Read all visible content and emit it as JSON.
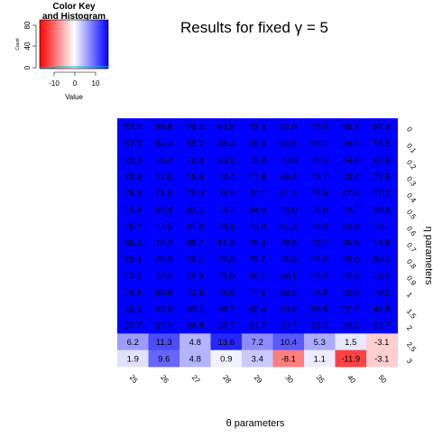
{
  "chart_data": {
    "type": "heatmap",
    "title": "Results for fixed γ = 5",
    "xlabel": "θ parameters",
    "ylabel": "η parameters",
    "x_categories": [
      "25",
      "26",
      "27",
      "28",
      "29",
      "30",
      "35",
      "40",
      "50"
    ],
    "y_categories": [
      "0",
      "0.1",
      "0.2",
      "0.3",
      "0.4",
      "0.5",
      "0.6",
      "0.7",
      "0.8",
      "0.9",
      "1",
      "1.5",
      "2",
      "2.5",
      "3"
    ],
    "values": [
      [
        87.4,
        89.8,
        70.4,
        63.5,
        73.4,
        62.0,
        72.0,
        65.2,
        67.4
      ],
      [
        87.8,
        84.3,
        58.7,
        68.3,
        65.4,
        66.5,
        69.1,
        68.3,
        55.5
      ],
      [
        70.8,
        78.4,
        72.8,
        68.1,
        73.0,
        70.0,
        78.2,
        84.0,
        67.8
      ],
      [
        70.3,
        77.8,
        75.5,
        72.4,
        77.8,
        65.8,
        76.7,
        73.2,
        77.5
      ],
      [
        76.5,
        71.0,
        79.0,
        76.9,
        70.1,
        81.3,
        75.5,
        87.0,
        77.3
      ],
      [
        75.2,
        85.8,
        82.1,
        74.7,
        84.6,
        73.0,
        79.0,
        79.7,
        80.4
      ],
      [
        76.7,
        77.5,
        87.6,
        78.1,
        73.0,
        81.3,
        78.4,
        82.8,
        73.7
      ],
      [
        80.4,
        79.2,
        89.7,
        81.9,
        79.3,
        78.5,
        73.7,
        85.0,
        73.5
      ],
      [
        83.6,
        75.9,
        76.1,
        79.8,
        75.7,
        75.8,
        79.5,
        78.0,
        89.1
      ],
      [
        73.6,
        74.9,
        75.9,
        75.0,
        86.7,
        66.1,
        79.0,
        75.0,
        72.9
      ],
      [
        74.8,
        69.8,
        71.6,
        75.8,
        77.1,
        62.3,
        79.0,
        72.9,
        70.1
      ],
      [
        42.3,
        47.0,
        39.1,
        48.7,
        50.4,
        53.9,
        56.5,
        37.7,
        40.8
      ],
      [
        27.7,
        17.3,
        24.8,
        25.7,
        21.7,
        20.7,
        21.3,
        19.1,
        21.7
      ],
      [
        6.2,
        11.3,
        4.8,
        13.6,
        7.2,
        10.4,
        5.3,
        1.5,
        -3.1
      ],
      [
        1.9,
        9.6,
        4.8,
        0.9,
        3.4,
        -8.1,
        1.1,
        -11.9,
        -3.1
      ]
    ],
    "color_scale": {
      "min": -16,
      "mid": 0,
      "max": 16,
      "low": "#ff0000",
      "mid_color": "#ffffff",
      "high": "#0000ff"
    },
    "color_key": {
      "title": "Color Key\nand Histogram",
      "xlabel": "Value",
      "ylabel": "Count",
      "x_ticks": [
        "-10",
        "0",
        "10"
      ],
      "y_ticks": [
        "0",
        "40",
        "80"
      ]
    }
  }
}
